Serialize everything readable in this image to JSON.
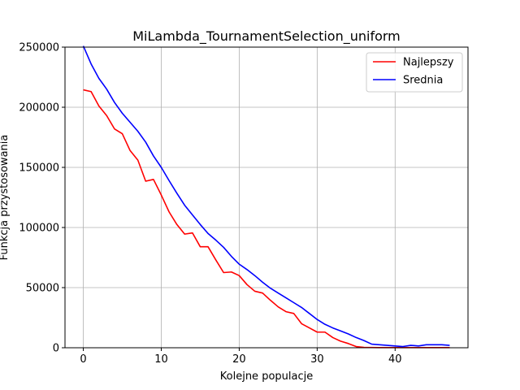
{
  "chart_data": {
    "type": "line",
    "title": "MiLambda_TournamentSelection_uniform",
    "xlabel": "Kolejne populacje",
    "ylabel": "Funkcja przystosowania",
    "xlim": [
      -2.35,
      49.35
    ],
    "ylim": [
      0,
      250000
    ],
    "x_ticks": [
      0,
      10,
      20,
      30,
      40
    ],
    "y_ticks": [
      0,
      50000,
      100000,
      150000,
      200000,
      250000
    ],
    "x_tick_labels": [
      "0",
      "10",
      "20",
      "30",
      "40"
    ],
    "y_tick_labels": [
      "0",
      "50000",
      "100000",
      "150000",
      "200000",
      "250000"
    ],
    "grid": true,
    "legend_position": "top-right",
    "x": [
      0,
      1,
      2,
      3,
      4,
      5,
      6,
      7,
      8,
      9,
      10,
      11,
      12,
      13,
      14,
      15,
      16,
      17,
      18,
      19,
      20,
      21,
      22,
      23,
      24,
      25,
      26,
      27,
      28,
      29,
      30,
      31,
      32,
      33,
      34,
      35,
      36,
      37,
      38,
      39,
      40,
      41,
      42,
      43,
      44,
      45,
      46,
      47
    ],
    "series": [
      {
        "name": "Najlepszy",
        "color": "#ff0000",
        "values": [
          214500,
          213000,
          201000,
          193000,
          182000,
          178000,
          164000,
          156000,
          138500,
          140000,
          127000,
          113000,
          102500,
          94500,
          95500,
          84000,
          84000,
          73000,
          62500,
          63000,
          60000,
          52500,
          47000,
          45500,
          39500,
          34000,
          30000,
          28500,
          20000,
          16500,
          13000,
          13000,
          8500,
          5500,
          3500,
          1000,
          300,
          200,
          100,
          100,
          100,
          100,
          100,
          100,
          100,
          100,
          100,
          100
        ]
      },
      {
        "name": "Srednia",
        "color": "#0000ff",
        "values": [
          251000,
          236000,
          224000,
          215000,
          204000,
          195000,
          187500,
          180000,
          171000,
          159500,
          150000,
          139000,
          128500,
          118500,
          110500,
          102500,
          95000,
          89500,
          83500,
          76000,
          69500,
          65000,
          60000,
          54500,
          49500,
          45500,
          41500,
          37500,
          33500,
          28500,
          23500,
          19500,
          16500,
          14000,
          11500,
          8500,
          6000,
          3000,
          2500,
          2000,
          1500,
          1000,
          2000,
          1500,
          2500,
          2500,
          2500,
          2000
        ]
      }
    ]
  }
}
